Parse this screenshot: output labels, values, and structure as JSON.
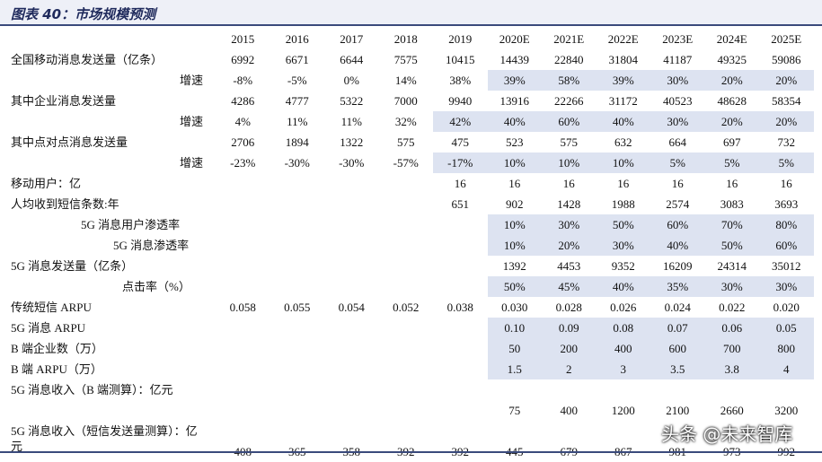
{
  "title": "图表 40：市场规模预测",
  "columns": [
    "2015",
    "2016",
    "2017",
    "2018",
    "2019",
    "2020E",
    "2021E",
    "2022E",
    "2023E",
    "2024E",
    "2025E"
  ],
  "rows": [
    {
      "label": "全国移动消息发送量（亿条）",
      "cells": [
        "6992",
        "6671",
        "6644",
        "7575",
        "10415",
        "14439",
        "22840",
        "31804",
        "41187",
        "49325",
        "59086"
      ]
    },
    {
      "label": "增速",
      "cells": [
        "-8%",
        "-5%",
        "0%",
        "14%",
        "38%",
        "39%",
        "58%",
        "39%",
        "30%",
        "20%",
        "20%"
      ]
    },
    {
      "label": "其中企业消息发送量",
      "cells": [
        "4286",
        "4777",
        "5322",
        "7000",
        "9940",
        "13916",
        "22266",
        "31172",
        "40523",
        "48628",
        "58354"
      ]
    },
    {
      "label": "增速",
      "cells": [
        "4%",
        "11%",
        "11%",
        "32%",
        "42%",
        "40%",
        "60%",
        "40%",
        "30%",
        "20%",
        "20%"
      ]
    },
    {
      "label": "其中点对点消息发送量",
      "cells": [
        "2706",
        "1894",
        "1322",
        "575",
        "475",
        "523",
        "575",
        "632",
        "664",
        "697",
        "732"
      ]
    },
    {
      "label": "增速",
      "cells": [
        "-23%",
        "-30%",
        "-30%",
        "-57%",
        "-17%",
        "10%",
        "10%",
        "10%",
        "5%",
        "5%",
        "5%"
      ]
    },
    {
      "label": "移动用户：亿",
      "cells": [
        null,
        null,
        null,
        null,
        "16",
        "16",
        "16",
        "16",
        "16",
        "16",
        "16"
      ]
    },
    {
      "label": "人均收到短信条数:年",
      "cells": [
        null,
        null,
        null,
        null,
        "651",
        "902",
        "1428",
        "1988",
        "2574",
        "3083",
        "3693"
      ]
    },
    {
      "label": "5G 消息用户渗透率",
      "cells": [
        null,
        null,
        null,
        null,
        null,
        "10%",
        "30%",
        "50%",
        "60%",
        "70%",
        "80%"
      ]
    },
    {
      "label": "5G 消息渗透率",
      "cells": [
        null,
        null,
        null,
        null,
        null,
        "10%",
        "20%",
        "30%",
        "40%",
        "50%",
        "60%"
      ]
    },
    {
      "label": "5G 消息发送量（亿条）",
      "cells": [
        null,
        null,
        null,
        null,
        null,
        "1392",
        "4453",
        "9352",
        "16209",
        "24314",
        "35012"
      ]
    },
    {
      "label": "点击率（%）",
      "cells": [
        null,
        null,
        null,
        null,
        null,
        "50%",
        "45%",
        "40%",
        "35%",
        "30%",
        "30%"
      ]
    },
    {
      "label": "传统短信 ARPU",
      "cells": [
        "0.058",
        "0.055",
        "0.054",
        "0.052",
        "0.038",
        "0.030",
        "0.028",
        "0.026",
        "0.024",
        "0.022",
        "0.020"
      ]
    },
    {
      "label": "5G 消息 ARPU",
      "cells": [
        null,
        null,
        null,
        null,
        null,
        "0.10",
        "0.09",
        "0.08",
        "0.07",
        "0.06",
        "0.05"
      ]
    },
    {
      "label": "B 端企业数（万）",
      "cells": [
        null,
        null,
        null,
        null,
        null,
        "50",
        "200",
        "400",
        "600",
        "700",
        "800"
      ]
    },
    {
      "label": "B 端 ARPU（万）",
      "cells": [
        null,
        null,
        null,
        null,
        null,
        "1.5",
        "2",
        "3",
        "3.5",
        "3.8",
        "4"
      ]
    },
    {
      "label": "5G 消息收入（B 端测算）：亿元",
      "cells": [
        null,
        null,
        null,
        null,
        null,
        "75",
        "400",
        "1200",
        "2100",
        "2660",
        "3200"
      ]
    },
    {
      "label": "5G 消息收入（短信发送量测算）：亿元",
      "cells": [
        "408",
        "365",
        "358",
        "392",
        "392",
        "445",
        "679",
        "867",
        "981",
        "973",
        "992"
      ]
    }
  ],
  "watermark": "头条 @未来智库"
}
